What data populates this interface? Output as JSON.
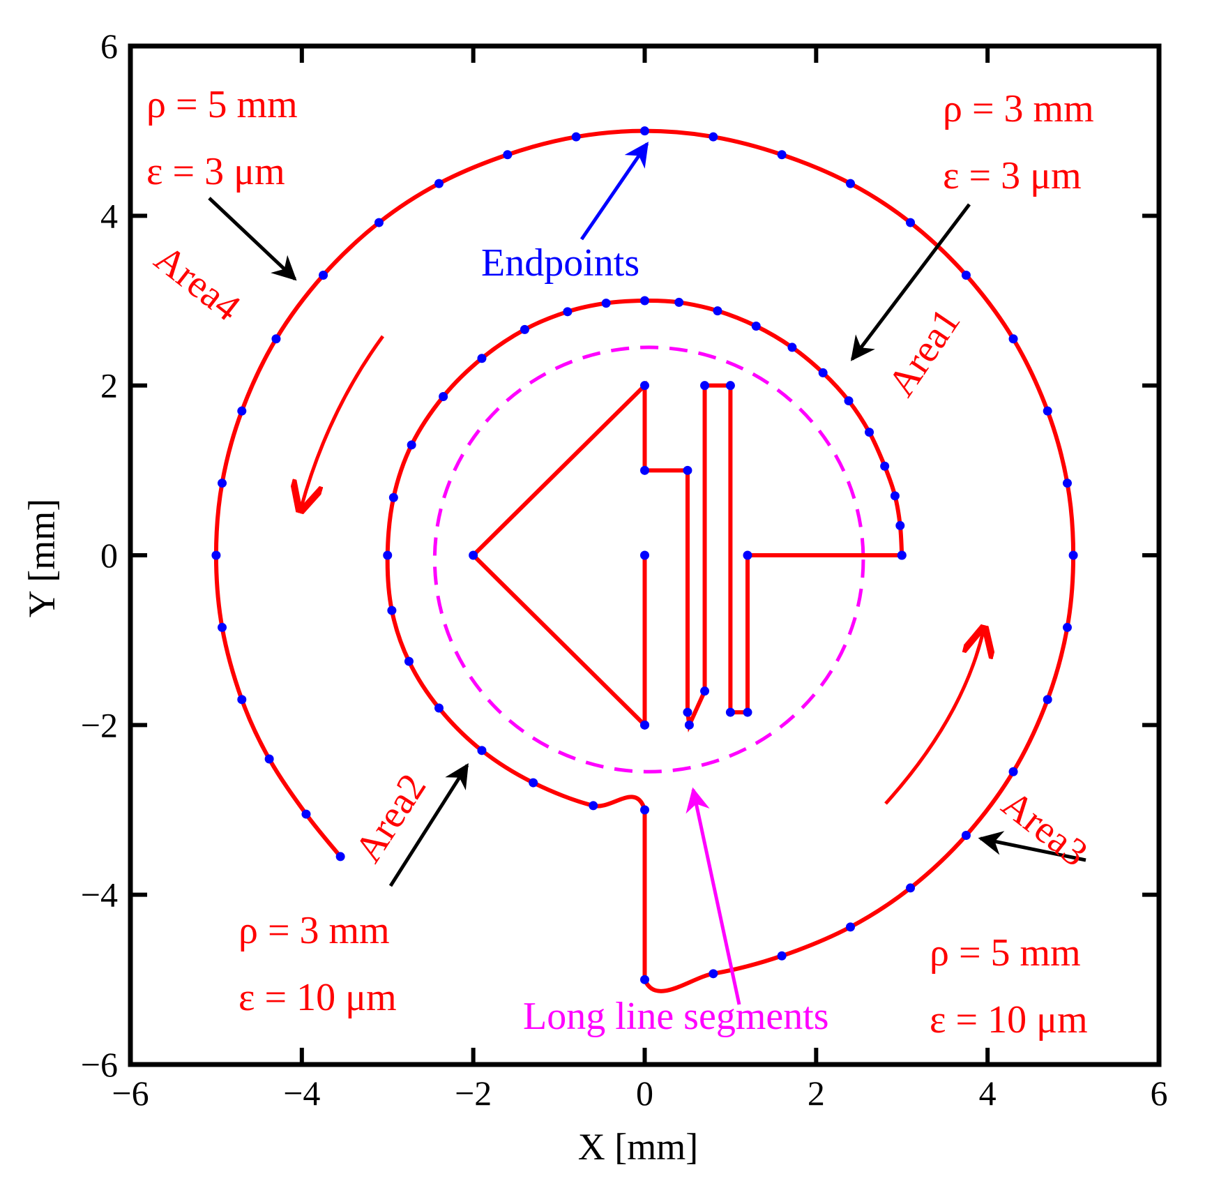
{
  "chart_data": {
    "type": "line",
    "xlabel": "X [mm]",
    "ylabel": "Y [mm]",
    "xlim": [
      -6,
      6
    ],
    "ylim": [
      -6,
      6
    ],
    "xticks": [
      "−6",
      "−4",
      "−2",
      "0",
      "2",
      "4",
      "6"
    ],
    "yticks": [
      "−6",
      "−4",
      "−2",
      "0",
      "2",
      "4",
      "6"
    ],
    "grid": false,
    "colors": {
      "path": "#ff0000",
      "endpoints": "#0000ff",
      "long_segments": "#ff00ff",
      "axes": "#000000"
    },
    "path": [
      [
        3.0,
        0
      ],
      [
        2.98,
        0.35
      ],
      [
        2.92,
        0.7
      ],
      [
        2.8,
        1.05
      ],
      [
        2.62,
        1.45
      ],
      [
        2.38,
        1.82
      ],
      [
        2.08,
        2.15
      ],
      [
        1.72,
        2.45
      ],
      [
        1.3,
        2.7
      ],
      [
        0.85,
        2.88
      ],
      [
        0.4,
        2.98
      ],
      [
        0,
        3.0
      ],
      [
        -0.45,
        2.97
      ],
      [
        -0.9,
        2.87
      ],
      [
        -1.4,
        2.66
      ],
      [
        -1.9,
        2.32
      ],
      [
        -2.35,
        1.87
      ],
      [
        -2.72,
        1.3
      ],
      [
        -2.93,
        0.68
      ],
      [
        -3.0,
        0
      ],
      [
        -2.95,
        -0.65
      ],
      [
        -2.75,
        -1.25
      ],
      [
        -2.4,
        -1.8
      ],
      [
        -1.9,
        -2.3
      ],
      [
        -1.3,
        -2.68
      ],
      [
        -0.6,
        -2.95
      ],
      [
        0,
        -3.0
      ],
      [
        0,
        -5.0
      ],
      [
        0.8,
        -4.93
      ],
      [
        1.6,
        -4.72
      ],
      [
        2.4,
        -4.38
      ],
      [
        3.1,
        -3.92
      ],
      [
        3.75,
        -3.3
      ],
      [
        4.3,
        -2.55
      ],
      [
        4.7,
        -1.7
      ],
      [
        4.93,
        -0.85
      ],
      [
        5.0,
        0
      ],
      [
        4.93,
        0.85
      ],
      [
        4.7,
        1.7
      ],
      [
        4.3,
        2.55
      ],
      [
        3.75,
        3.3
      ],
      [
        3.1,
        3.92
      ],
      [
        2.4,
        4.38
      ],
      [
        1.6,
        4.72
      ],
      [
        0.8,
        4.93
      ],
      [
        0,
        5.0
      ],
      [
        -0.8,
        4.93
      ],
      [
        -1.6,
        4.72
      ],
      [
        -2.4,
        4.38
      ],
      [
        -3.1,
        3.92
      ],
      [
        -3.75,
        3.3
      ],
      [
        -4.3,
        2.55
      ],
      [
        -4.7,
        1.7
      ],
      [
        -4.93,
        0.85
      ],
      [
        -5.0,
        0
      ],
      [
        -4.93,
        -0.85
      ],
      [
        -4.7,
        -1.7
      ],
      [
        -4.38,
        -2.4
      ],
      [
        -3.95,
        -3.05
      ],
      [
        -3.55,
        -3.55
      ]
    ],
    "inner_shape": [
      [
        [
          0,
          0
        ],
        [
          0,
          -2.0
        ]
      ],
      [
        [
          0,
          -2.0
        ],
        [
          -2.0,
          0
        ],
        [
          0,
          2.0
        ],
        [
          0,
          1.0
        ],
        [
          0.5,
          1.0
        ],
        [
          0.5,
          -1.85
        ],
        [
          0.52,
          -2.0
        ],
        [
          0.7,
          -1.6
        ],
        [
          0.7,
          2.0
        ],
        [
          1.0,
          2.0
        ],
        [
          1.0,
          -1.85
        ],
        [
          1.2,
          -1.85
        ],
        [
          1.2,
          0
        ],
        [
          3.0,
          0
        ]
      ]
    ],
    "long_segments_circle": {
      "cx": 0.05,
      "cy": -0.05,
      "r": 2.5
    },
    "annotations": {
      "area1": "Area1",
      "area2": "Area2",
      "area3": "Area3",
      "area4": "Area4",
      "endpoints": "Endpoints",
      "long_segments": "Long line segments",
      "area1_rho": "ρ = 3 mm",
      "area1_eps": "ε = 3 μm",
      "area2_rho": "ρ = 3 mm",
      "area2_eps": "ε = 10 μm",
      "area3_rho": "ρ = 5 mm",
      "area3_eps": "ε = 10 μm",
      "area4_rho": "ρ = 5 mm",
      "area4_eps": "ε = 3 μm"
    }
  }
}
